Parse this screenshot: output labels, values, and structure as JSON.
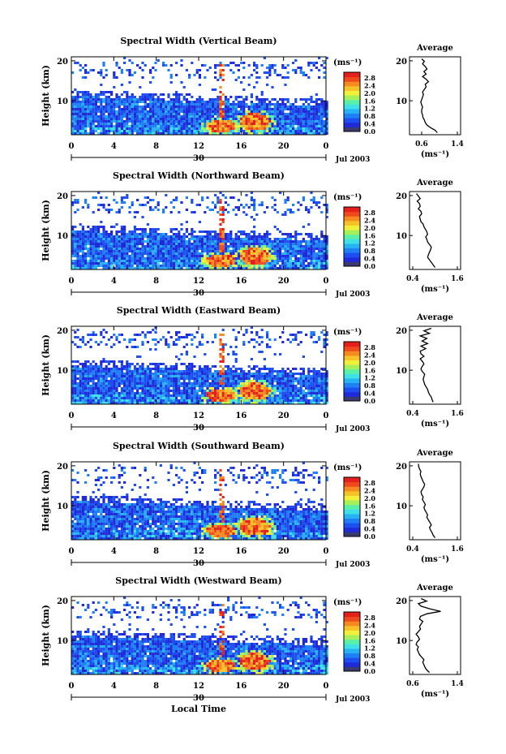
{
  "colors": {
    "scale": [
      "#3a3a6e",
      "#1f2ad8",
      "#1d4ef0",
      "#1f7ff5",
      "#27b3f3",
      "#3fe0e6",
      "#5af0a8",
      "#a8f05a",
      "#f0f03a",
      "#f5c22a",
      "#f58a20",
      "#ef4a1e",
      "#e5201c"
    ],
    "background": "#ffffff",
    "line": "#000000"
  },
  "chart_data": [
    {
      "type": "heatmap",
      "title": "Spectral Width (Vertical Beam)",
      "ylabel": "Height (km)",
      "yticks": [
        "20",
        "10"
      ],
      "xticks": [
        "0",
        "4",
        "8",
        "12",
        "16",
        "20",
        "0"
      ],
      "date_marker": "30",
      "date_label": "Jul 2003",
      "colorbar": {
        "unit": "(ms⁻¹)",
        "ticks": [
          "2.8",
          "2.4",
          "2.0",
          "1.6",
          "1.2",
          "0.8",
          "0.4",
          "0.0"
        ]
      },
      "profile": {
        "title": "Average",
        "xlabel": "(ms⁻¹)",
        "xticks": [
          "0.6",
          "1.4"
        ],
        "yticks": [
          "20",
          "10"
        ],
        "xlim": [
          0.4,
          1.4
        ],
        "values": [
          0.95,
          0.9,
          0.8,
          0.72,
          0.68,
          0.66,
          0.63,
          0.62,
          0.6,
          0.6,
          0.62,
          0.6,
          0.58,
          0.6,
          0.62,
          0.64,
          0.62,
          0.66,
          0.7,
          0.68,
          0.75,
          0.7,
          0.62,
          0.7,
          0.65,
          0.72,
          0.68,
          0.62,
          0.66,
          0.6
        ]
      }
    },
    {
      "type": "heatmap",
      "title": "Spectral Width (Northward Beam)",
      "ylabel": "Height (km)",
      "yticks": [
        "20",
        "10"
      ],
      "xticks": [
        "0",
        "4",
        "8",
        "12",
        "16",
        "20",
        "0"
      ],
      "date_marker": "30",
      "date_label": "Jul 2003",
      "colorbar": {
        "unit": "(ms⁻¹)",
        "ticks": [
          "2.8",
          "2.4",
          "2.0",
          "1.6",
          "1.2",
          "0.8",
          "0.4",
          "0.0"
        ]
      },
      "profile": {
        "title": "Average",
        "xlabel": "(ms⁻¹)",
        "xticks": [
          "0.4",
          "1.6"
        ],
        "yticks": [
          "20",
          "10"
        ],
        "xlim": [
          0.4,
          1.6
        ],
        "values": [
          1.0,
          0.95,
          0.9,
          0.85,
          0.8,
          0.82,
          0.85,
          0.88,
          0.9,
          0.85,
          0.8,
          0.78,
          0.75,
          0.8,
          0.78,
          0.74,
          0.7,
          0.68,
          0.62,
          0.6,
          0.58,
          0.64,
          0.62,
          0.55,
          0.6,
          0.58,
          0.52,
          0.6,
          0.55,
          0.5
        ]
      }
    },
    {
      "type": "heatmap",
      "title": "Spectral Width (Eastward Beam)",
      "ylabel": "Height (km)",
      "yticks": [
        "20",
        "10"
      ],
      "xticks": [
        "0",
        "4",
        "8",
        "12",
        "16",
        "20",
        "0"
      ],
      "date_marker": "30",
      "date_label": "Jul 2003",
      "colorbar": {
        "unit": "(ms⁻¹)",
        "ticks": [
          "2.8",
          "2.4",
          "2.0",
          "1.6",
          "1.2",
          "0.8",
          "0.4",
          "0.0"
        ]
      },
      "profile": {
        "title": "Average",
        "xlabel": "(ms⁻¹)",
        "xticks": [
          "0.4",
          "1.6"
        ],
        "yticks": [
          "20",
          "10"
        ],
        "xlim": [
          0.4,
          1.6
        ],
        "values": [
          0.95,
          0.92,
          0.9,
          0.85,
          0.82,
          0.8,
          0.76,
          0.72,
          0.7,
          0.68,
          0.7,
          0.72,
          0.66,
          0.62,
          0.65,
          0.7,
          0.66,
          0.6,
          0.7,
          0.62,
          0.6,
          0.75,
          0.62,
          0.8,
          0.65,
          0.78,
          0.6,
          0.85,
          0.7,
          0.9
        ]
      }
    },
    {
      "type": "heatmap",
      "title": "Spectral Width (Southward Beam)",
      "ylabel": "Height (km)",
      "yticks": [
        "20",
        "10"
      ],
      "xticks": [
        "0",
        "4",
        "8",
        "12",
        "16",
        "20",
        "0"
      ],
      "date_marker": "30",
      "date_label": "Jul 2003",
      "colorbar": {
        "unit": "(ms⁻¹)",
        "ticks": [
          "2.8",
          "2.4",
          "2.0",
          "1.6",
          "1.2",
          "0.8",
          "0.4",
          "0.0"
        ]
      },
      "profile": {
        "title": "Average",
        "xlabel": "(ms⁻¹)",
        "xticks": [
          "0.4",
          "1.6"
        ],
        "yticks": [
          "20",
          "10"
        ],
        "xlim": [
          0.4,
          1.6
        ],
        "values": [
          1.0,
          0.95,
          0.92,
          0.88,
          0.85,
          0.9,
          0.86,
          0.82,
          0.78,
          0.8,
          0.76,
          0.72,
          0.7,
          0.74,
          0.7,
          0.66,
          0.68,
          0.64,
          0.62,
          0.66,
          0.7,
          0.72,
          0.68,
          0.65,
          0.62,
          0.6,
          0.62,
          0.58,
          0.56,
          0.55
        ]
      }
    },
    {
      "type": "heatmap",
      "title": "Spectral Width (Westward Beam)",
      "ylabel": "Height (km)",
      "yticks": [
        "20",
        "10"
      ],
      "xticks": [
        "0",
        "4",
        "8",
        "12",
        "16",
        "20",
        "0"
      ],
      "xlabel": "Local Time",
      "date_marker": "30",
      "date_label": "Jul 2003",
      "colorbar": {
        "unit": "(ms⁻¹)",
        "ticks": [
          "2.8",
          "2.4",
          "2.0",
          "1.6",
          "1.2",
          "0.8",
          "0.4",
          "0.0"
        ]
      },
      "profile": {
        "title": "Average",
        "xlabel": "(ms⁻¹)",
        "xticks": [
          "0.6",
          "1.4"
        ],
        "yticks": [
          "20",
          "10"
        ],
        "xlim": [
          0.6,
          1.4
        ],
        "values": [
          0.9,
          0.85,
          0.82,
          0.8,
          0.78,
          0.8,
          0.76,
          0.72,
          0.7,
          0.68,
          0.7,
          0.66,
          0.68,
          0.72,
          0.7,
          0.66,
          0.7,
          0.74,
          0.72,
          0.75,
          0.78,
          0.72,
          0.74,
          0.85,
          1.1,
          0.9,
          0.75,
          0.7,
          0.85,
          0.75
        ]
      }
    }
  ]
}
